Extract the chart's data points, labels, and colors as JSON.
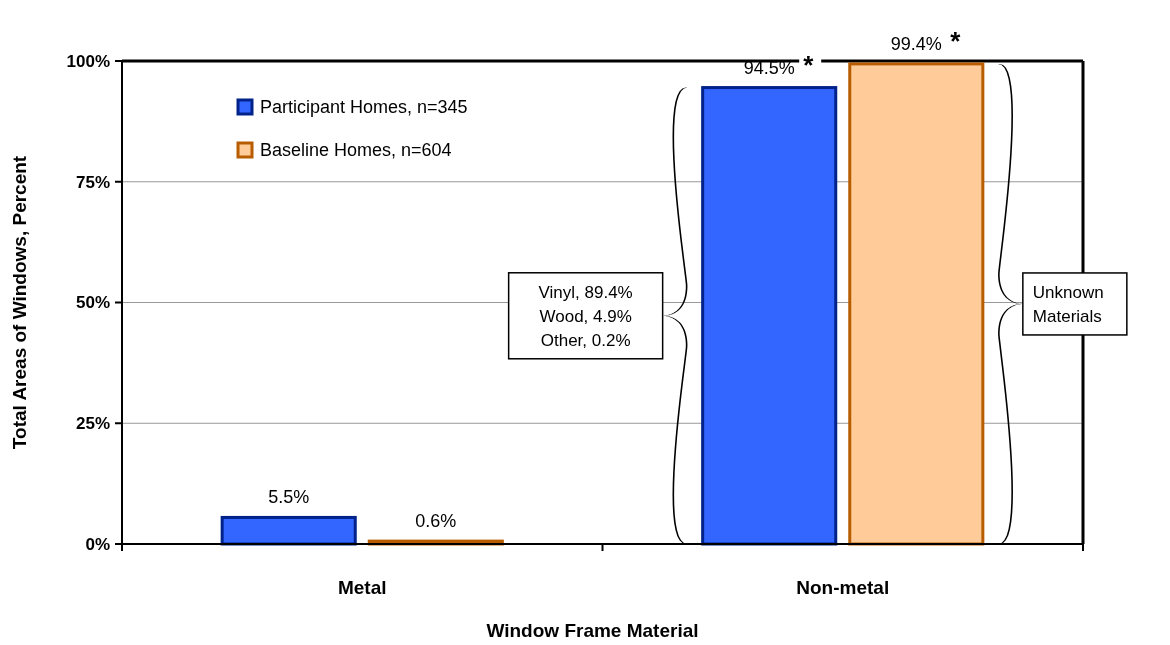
{
  "chart_data": {
    "type": "bar",
    "xlabel": "Window Frame Material",
    "ylabel": "Total Areas of Windows, Percent",
    "categories": [
      "Metal",
      "Non-metal"
    ],
    "series": [
      {
        "name": "Participant Homes, n=345",
        "color": "#3366ff",
        "values": [
          5.5,
          94.5
        ],
        "value_labels": [
          "5.5%",
          "94.5%"
        ]
      },
      {
        "name": "Baseline Homes, n=604",
        "color": "#ffcc99",
        "values": [
          0.6,
          99.4
        ],
        "value_labels": [
          "0.6%",
          "99.4%"
        ]
      }
    ],
    "ylim": [
      0,
      100
    ],
    "yticks": [
      {
        "value": 0,
        "label": "0%"
      },
      {
        "value": 25,
        "label": "25%"
      },
      {
        "value": 50,
        "label": "50%"
      },
      {
        "value": 75,
        "label": "75%"
      },
      {
        "value": 100,
        "label": "100%"
      }
    ],
    "grid": "y",
    "legend": "top left",
    "annotations": [
      "Vinyl, 89.4%\nWood, 4.9%\nOther, 0.2%",
      "Unknown\nMaterials",
      "*",
      "*"
    ]
  }
}
